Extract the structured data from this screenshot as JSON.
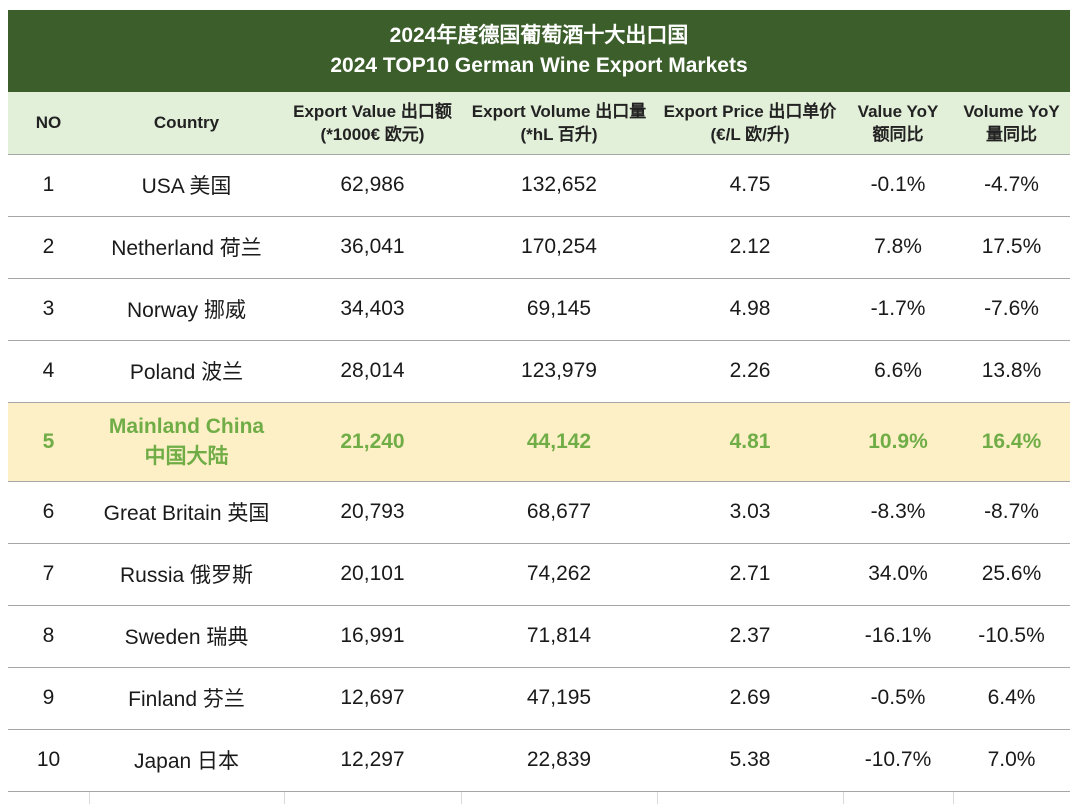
{
  "title": {
    "line1": "2024年度德国葡萄酒十大出口国",
    "line2": "2024 TOP10 German Wine Export Markets"
  },
  "chart_data": {
    "type": "table",
    "columns": [
      {
        "line1": "NO",
        "line2": ""
      },
      {
        "line1": "Country",
        "line2": ""
      },
      {
        "line1": "Export Value 出口额",
        "line2": "(*1000€ 欧元)"
      },
      {
        "line1": "Export Volume 出口量",
        "line2": "(*hL 百升)"
      },
      {
        "line1": "Export Price 出口单价",
        "line2": "(€/L 欧/升)"
      },
      {
        "line1": "Value YoY",
        "line2": "额同比"
      },
      {
        "line1": "Volume YoY",
        "line2": "量同比"
      }
    ],
    "rows": [
      {
        "no": "1",
        "country": "USA 美国",
        "value": "62,986",
        "volume": "132,652",
        "price": "4.75",
        "value_yoy": "-0.1%",
        "volume_yoy": "-4.7%"
      },
      {
        "no": "2",
        "country": "Netherland 荷兰",
        "value": "36,041",
        "volume": "170,254",
        "price": "2.12",
        "value_yoy": "7.8%",
        "volume_yoy": "17.5%"
      },
      {
        "no": "3",
        "country": "Norway 挪威",
        "value": "34,403",
        "volume": "69,145",
        "price": "4.98",
        "value_yoy": "-1.7%",
        "volume_yoy": "-7.6%"
      },
      {
        "no": "4",
        "country": "Poland 波兰",
        "value": "28,014",
        "volume": "123,979",
        "price": "2.26",
        "value_yoy": "6.6%",
        "volume_yoy": "13.8%"
      },
      {
        "no": "5",
        "country": "Mainland China",
        "country2": "中国大陆",
        "value": "21,240",
        "volume": "44,142",
        "price": "4.81",
        "value_yoy": "10.9%",
        "volume_yoy": "16.4%",
        "highlight": true
      },
      {
        "no": "6",
        "country": "Great Britain 英国",
        "value": "20,793",
        "volume": "68,677",
        "price": "3.03",
        "value_yoy": "-8.3%",
        "volume_yoy": "-8.7%"
      },
      {
        "no": "7",
        "country": "Russia 俄罗斯",
        "value": "20,101",
        "volume": "74,262",
        "price": "2.71",
        "value_yoy": "34.0%",
        "volume_yoy": "25.6%"
      },
      {
        "no": "8",
        "country": "Sweden 瑞典",
        "value": "16,991",
        "volume": "71,814",
        "price": "2.37",
        "value_yoy": "-16.1%",
        "volume_yoy": "-10.5%"
      },
      {
        "no": "9",
        "country": "Finland 芬兰",
        "value": "12,697",
        "volume": "47,195",
        "price": "2.69",
        "value_yoy": "-0.5%",
        "volume_yoy": "6.4%"
      },
      {
        "no": "10",
        "country": "Japan 日本",
        "value": "12,297",
        "volume": "22,839",
        "price": "5.38",
        "value_yoy": "-10.7%",
        "volume_yoy": "7.0%"
      }
    ]
  },
  "colors": {
    "title_bg": "#3b5e2b",
    "header_bg": "#e2efd9",
    "highlight_bg": "#fdf0c6",
    "highlight_text": "#70ad47"
  }
}
